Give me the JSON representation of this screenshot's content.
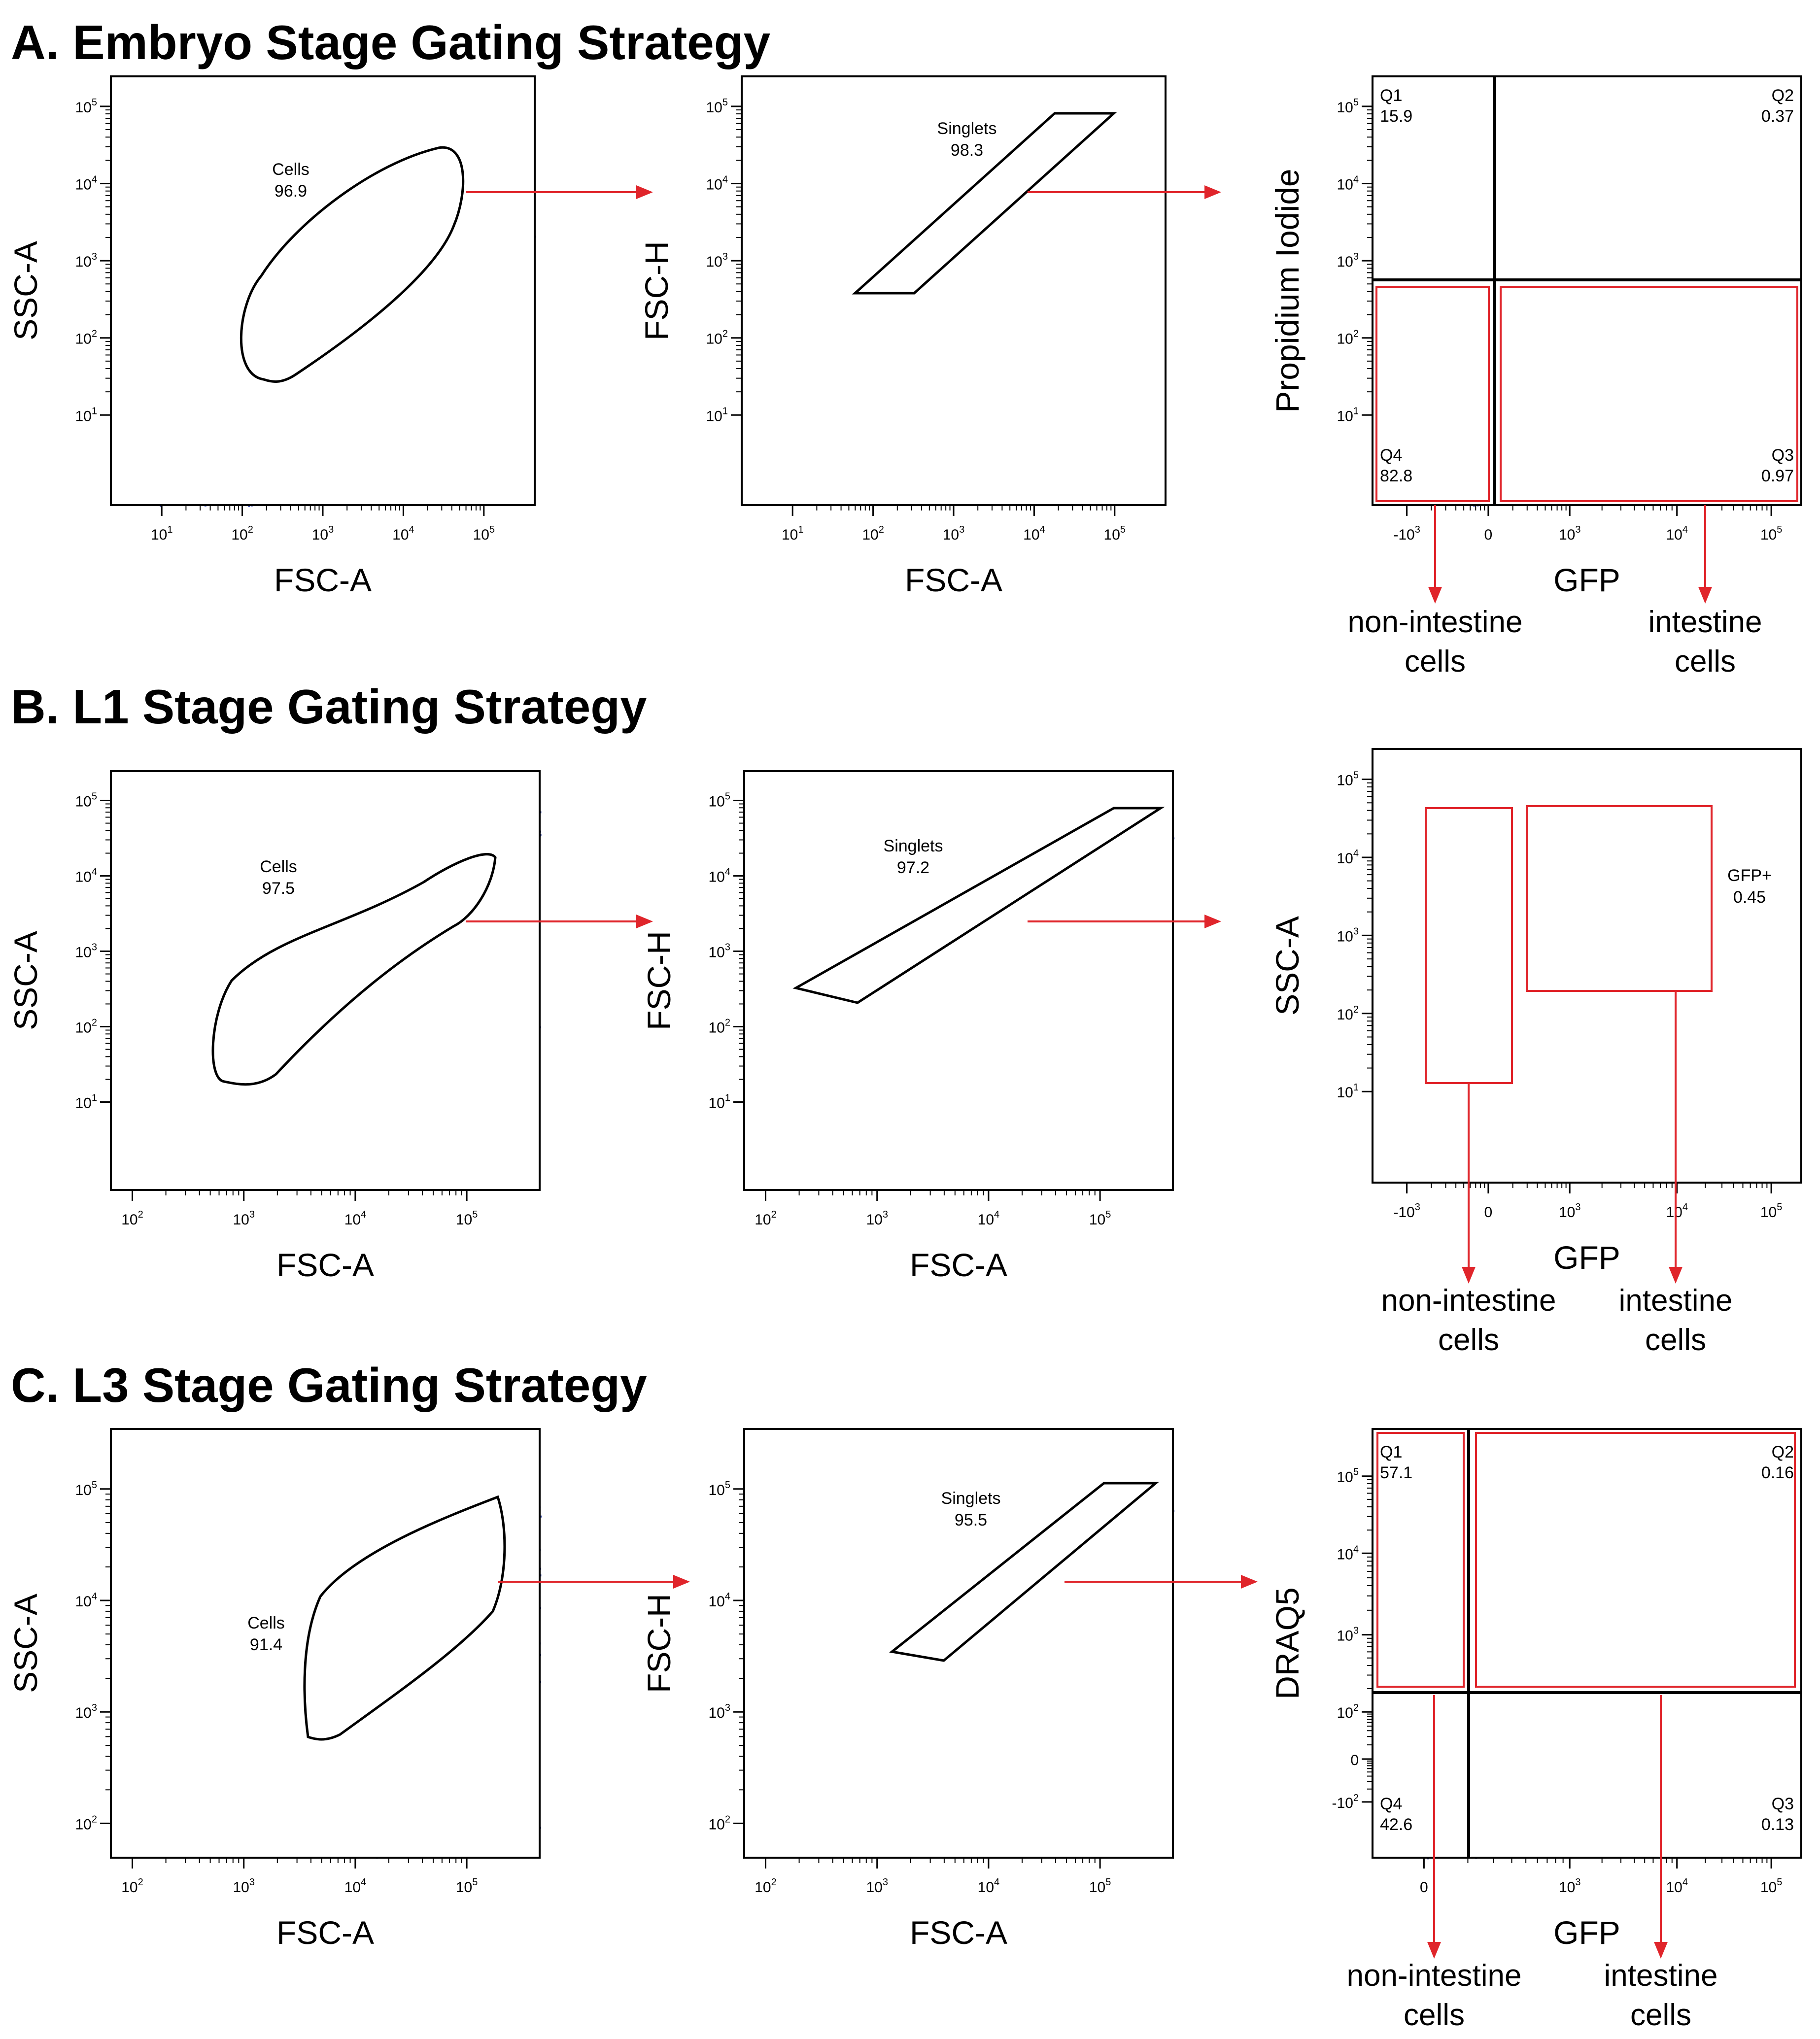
{
  "sections": [
    {
      "title": "A. Embryo Stage Gating Strategy",
      "plots": [
        {
          "xlabel": "FSC-A",
          "ylabel": "SSC-A",
          "xticks": [
            "10|1",
            "10|2",
            "10|3",
            "10|4",
            "10|5"
          ],
          "yticks": [
            "10|5",
            "10|4",
            "10|3",
            "10|2",
            "10|1"
          ],
          "gate": {
            "name": "Cells",
            "value": "96.9"
          }
        },
        {
          "xlabel": "FSC-A",
          "ylabel": "FSC-H",
          "xticks": [
            "10|1",
            "10|2",
            "10|3",
            "10|4",
            "10|5"
          ],
          "yticks": [
            "10|5",
            "10|4",
            "10|3",
            "10|2",
            "10|1"
          ],
          "gate": {
            "name": "Singlets",
            "value": "98.3"
          }
        },
        {
          "xlabel": "GFP",
          "ylabel": "Propidium Iodide",
          "xticks": [
            "-10|3",
            "0",
            "10|3",
            "10|4",
            "10|5"
          ],
          "yticks": [
            "10|5",
            "10|4",
            "10|3",
            "10|2",
            "10|1"
          ],
          "quadrants": [
            {
              "name": "Q1",
              "value": "15.9"
            },
            {
              "name": "Q2",
              "value": "0.37"
            },
            {
              "name": "Q3",
              "value": "0.97"
            },
            {
              "name": "Q4",
              "value": "82.8"
            }
          ]
        }
      ],
      "callouts": [
        {
          "line1": "non-intestine",
          "line2": "cells"
        },
        {
          "line1": "intestine",
          "line2": "cells"
        }
      ]
    },
    {
      "title": "B. L1 Stage Gating Strategy",
      "plots": [
        {
          "xlabel": "FSC-A",
          "ylabel": "SSC-A",
          "xticks": [
            "10|2",
            "10|3",
            "10|4",
            "10|5"
          ],
          "yticks": [
            "10|5",
            "10|4",
            "10|3",
            "10|2",
            "10|1"
          ],
          "gate": {
            "name": "Cells",
            "value": "97.5"
          }
        },
        {
          "xlabel": "FSC-A",
          "ylabel": "FSC-H",
          "xticks": [
            "10|2",
            "10|3",
            "10|4",
            "10|5"
          ],
          "yticks": [
            "10|5",
            "10|4",
            "10|3",
            "10|2",
            "10|1"
          ],
          "gate": {
            "name": "Singlets",
            "value": "97.2"
          }
        },
        {
          "xlabel": "GFP",
          "ylabel": "SSC-A",
          "xticks": [
            "-10|3",
            "0",
            "10|3",
            "10|4",
            "10|5"
          ],
          "yticks": [
            "10|5",
            "10|4",
            "10|3",
            "10|2",
            "10|1"
          ],
          "gate": {
            "name": "GFP+",
            "value": "0.45"
          }
        }
      ],
      "callouts": [
        {
          "line1": "non-intestine",
          "line2": "cells"
        },
        {
          "line1": "intestine",
          "line2": "cells"
        }
      ]
    },
    {
      "title": "C. L3 Stage Gating Strategy",
      "plots": [
        {
          "xlabel": "FSC-A",
          "ylabel": "SSC-A",
          "xticks": [
            "10|2",
            "10|3",
            "10|4",
            "10|5"
          ],
          "yticks": [
            "10|5",
            "10|4",
            "10|3",
            "10|2"
          ],
          "gate": {
            "name": "Cells",
            "value": "91.4"
          }
        },
        {
          "xlabel": "FSC-A",
          "ylabel": "FSC-H",
          "xticks": [
            "10|2",
            "10|3",
            "10|4",
            "10|5"
          ],
          "yticks": [
            "10|5",
            "10|4",
            "10|3",
            "10|2"
          ],
          "gate": {
            "name": "Singlets",
            "value": "95.5"
          }
        },
        {
          "xlabel": "GFP",
          "ylabel": "DRAQ5",
          "xticks": [
            "0",
            "10|3",
            "10|4",
            "10|5"
          ],
          "yticks": [
            "10|5",
            "10|4",
            "10|3",
            "10|2",
            "0",
            "-10|2"
          ],
          "quadrants": [
            {
              "name": "Q1",
              "value": "57.1"
            },
            {
              "name": "Q2",
              "value": "0.16"
            },
            {
              "name": "Q3",
              "value": "0.13"
            },
            {
              "name": "Q4",
              "value": "42.6"
            }
          ]
        }
      ],
      "callouts": [
        {
          "line1": "non-intestine",
          "line2": "cells"
        },
        {
          "line1": "intestine",
          "line2": "cells"
        }
      ]
    }
  ],
  "colors": {
    "gate": "#000000",
    "arrow": "#e0252b",
    "density_low": "#2b3fa8",
    "density_high": "#d8261f"
  }
}
